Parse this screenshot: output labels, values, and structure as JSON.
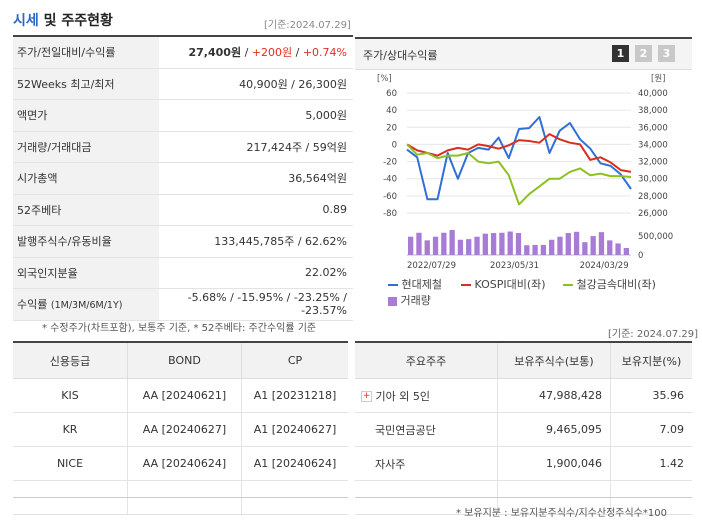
{
  "header": {
    "title_accent": "시세",
    "title_rest": "및 주주현황",
    "basis": "[기준:2024.07.29]"
  },
  "info_rows": [
    {
      "label": "주가/전일대비/수익률",
      "value_main": "27,400원",
      "sep1": " / ",
      "value_change": "+200원",
      "sep2": " / ",
      "value_rate": "+0.74%"
    },
    {
      "label": "52Weeks 최고/최저",
      "value": "40,900원 / 26,300원"
    },
    {
      "label": "액면가",
      "value": "5,000원"
    },
    {
      "label": "거래량/거래대금",
      "value": "217,424주 / 59억원"
    },
    {
      "label": "시가총액",
      "value": "36,564억원"
    },
    {
      "label": "52주베타",
      "value": "0.89"
    },
    {
      "label": "발행주식수/유동비율",
      "value": "133,445,785주 / 62.62%"
    },
    {
      "label": "외국인지분율",
      "value": "22.02%"
    },
    {
      "label": "수익률",
      "label_sub": "(1M/3M/6M/1Y)",
      "value": "-5.68% / -15.95% / -23.25% / -23.57%"
    }
  ],
  "info_note": "* 수정주가(차트포함), 보통주 기준, * 52주베타: 주간수익률 기준",
  "chart_panel": {
    "title": "주가/상대수익률",
    "tabs": [
      "1",
      "2",
      "3"
    ],
    "right_unit": "[원]",
    "left_unit": "[%]",
    "legend": [
      {
        "label": "현대제철",
        "color": "#2f6fd6"
      },
      {
        "label": "KOSPI대비(좌)",
        "color": "#d7301f"
      },
      {
        "label": "철강금속대비(좌)",
        "color": "#8cc11f"
      },
      {
        "label": "거래량",
        "color": "#a87bd6"
      }
    ]
  },
  "chart_data": {
    "type": "line",
    "x_labels": [
      "2022/07/29",
      "2023/05/31",
      "2024/03/29"
    ],
    "y_left": {
      "label": "%",
      "ticks": [
        60,
        40,
        20,
        0,
        -20,
        -40,
        -60,
        -80
      ],
      "range": [
        -80,
        60
      ]
    },
    "y_right": {
      "label": "원",
      "ticks": [
        40000,
        38000,
        36000,
        34000,
        32000,
        30000,
        28000,
        26000
      ],
      "range": [
        26000,
        40000
      ]
    },
    "y_right_tick_labels": [
      "40,000",
      "38,000",
      "36,000",
      "34,000",
      "32,000",
      "30,000",
      "28,000",
      "26,000"
    ],
    "volume_tick_labels": [
      "500,000",
      "0"
    ],
    "series": [
      {
        "name": "현대제철",
        "axis": "right",
        "color": "#2f6fd6",
        "values": [
          33400,
          32500,
          27600,
          27600,
          33000,
          30000,
          33000,
          33600,
          33400,
          34800,
          32400,
          35800,
          35900,
          37200,
          33000,
          35600,
          36500,
          34600,
          33500,
          31800,
          31500,
          30500,
          28800
        ]
      },
      {
        "name": "KOSPI대비(좌)",
        "axis": "left",
        "color": "#d7301f",
        "values": [
          0,
          -7,
          -10,
          -13,
          -7,
          -4,
          -6,
          0,
          -2,
          -5,
          -1,
          5,
          4,
          2,
          12,
          6,
          2,
          0,
          -18,
          -15,
          -21,
          -30,
          -32
        ]
      },
      {
        "name": "철강금속대비(좌)",
        "axis": "left",
        "color": "#8cc11f",
        "values": [
          0,
          -12,
          -10,
          -16,
          -13,
          -13,
          -10,
          -20,
          -22,
          -20,
          -36,
          -70,
          -58,
          -49,
          -40,
          -40,
          -32,
          -28,
          -36,
          -34,
          -37,
          -37,
          -38
        ]
      }
    ],
    "volume": {
      "name": "거래량",
      "color": "#a87bd6",
      "range": [
        0,
        500000
      ],
      "values": [
        600000,
        730000,
        480000,
        600000,
        730000,
        820000,
        500000,
        520000,
        600000,
        700000,
        720000,
        730000,
        770000,
        720000,
        320000,
        330000,
        330000,
        500000,
        600000,
        720000,
        760000,
        420000,
        620000,
        750000,
        480000,
        380000,
        230000
      ]
    }
  },
  "basis2": "[기준: 2024.07.29]",
  "credit": {
    "headers": [
      "신용등급",
      "BOND",
      "CP"
    ],
    "rows": [
      {
        "agency": "KIS",
        "bond": "AA  [20240621]",
        "cp": "A1  [20231218]"
      },
      {
        "agency": "KR",
        "bond": "AA  [20240627]",
        "cp": "A1  [20240627]"
      },
      {
        "agency": "NICE",
        "bond": "AA  [20240624]",
        "cp": "A1  [20240624]"
      }
    ]
  },
  "holders": {
    "headers": [
      "주요주주",
      "보유주식수(보통)",
      "보유지분(%)"
    ],
    "rows": [
      {
        "name": "기아 외 5인",
        "shares": "47,988,428",
        "pct": "35.96",
        "expand": "+"
      },
      {
        "name": "국민연금공단",
        "shares": "9,465,095",
        "pct": "7.09"
      },
      {
        "name": "자사주",
        "shares": "1,900,046",
        "pct": "1.42"
      }
    ],
    "note": "* 보유지분 : 보유지분주식수/지수산정주식수*100"
  }
}
